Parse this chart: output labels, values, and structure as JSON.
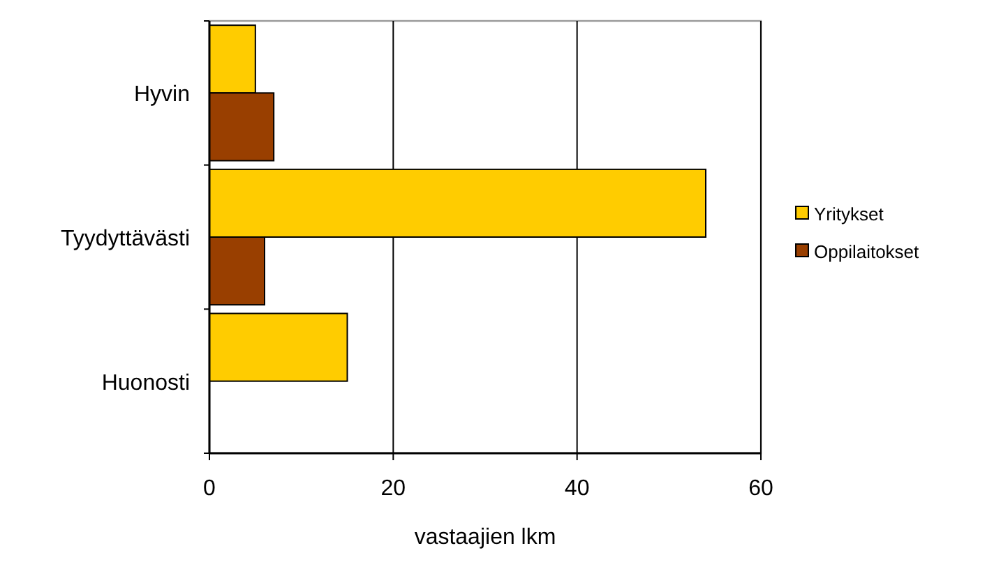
{
  "chart_data": {
    "type": "bar",
    "orientation": "horizontal",
    "categories": [
      "Hyvin",
      "Tyydyttävästi",
      "Huonosti"
    ],
    "series": [
      {
        "name": "Yritykset",
        "color": "#ffcc00",
        "values": [
          5,
          54,
          15
        ]
      },
      {
        "name": "Oppilaitokset",
        "color": "#993f00",
        "values": [
          7,
          6,
          null
        ]
      }
    ],
    "xlim": [
      0,
      60
    ],
    "xticks": [
      0,
      20,
      40,
      60
    ],
    "xlabel": "vastaajien lkm",
    "grid": "x",
    "legend": "right"
  }
}
